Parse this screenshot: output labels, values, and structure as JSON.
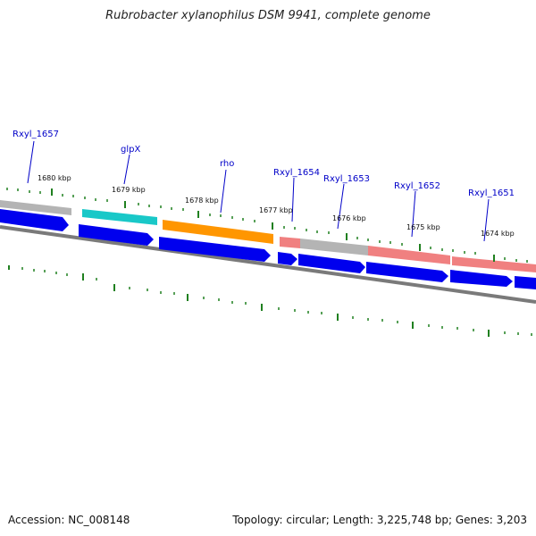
{
  "title": "Rubrobacter xylanophilus DSM 9941, complete genome",
  "footer": {
    "accession": "Accession: NC_008148",
    "summary": "Topology: circular; Length: 3,225,748 bp; Genes: 3,203"
  },
  "colors": {
    "forward_cds": "#0000ee",
    "gray_gene": "#b4b4b4",
    "cyan_gene": "#19c8c8",
    "orange_gene": "#ff9600",
    "pink_gene": "#f08080",
    "backbone": "#7a7a7a",
    "tick": "#208020",
    "label": "#0000c8"
  },
  "gene_labels": [
    "Rxyl_1657",
    "glpX",
    "rho",
    "Rxyl_1654",
    "Rxyl_1653",
    "Rxyl_1652",
    "Rxyl_1651"
  ],
  "kbp_labels": [
    "1680 kbp",
    "1679 kbp",
    "1678 kbp",
    "1677 kbp",
    "1676 kbp",
    "1675 kbp",
    "1674 kbp"
  ],
  "top_track_genes": [
    {
      "color": "gray"
    },
    {
      "color": "cyan"
    },
    {
      "color": "orange"
    },
    {
      "color": "pink"
    },
    {
      "color": "gray"
    },
    {
      "color": "pink"
    },
    {
      "color": "pink"
    }
  ],
  "forward_track_genes": 8
}
